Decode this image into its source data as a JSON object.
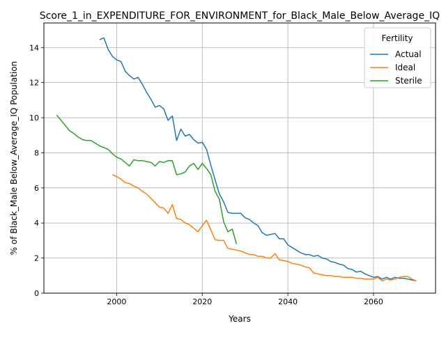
{
  "chart_data": {
    "type": "line",
    "title": "Score_1_in_EXPENDITURE_FOR_ENVIRONMENT_for_Black_Male_Below_Average_IQ",
    "xlabel": "Years",
    "ylabel": "% of Black_Male Below_Average_IQ Population",
    "xlim": [
      2083,
      2124
    ],
    "ylim": [
      0,
      15.4
    ],
    "xticks": [
      2000,
      2020,
      2040,
      2060
    ],
    "yticks": [
      0,
      2,
      4,
      6,
      8,
      10,
      12,
      14
    ],
    "grid": true,
    "legend": {
      "title": "Fertility",
      "placement": "top-right"
    },
    "series": [
      {
        "name": "Actual",
        "color": "#1f77b4",
        "x": [
          1996,
          1997,
          1998,
          1999,
          2000,
          2001,
          2002,
          2003,
          2004,
          2005,
          2006,
          2007,
          2008,
          2009,
          2010,
          2011,
          2012,
          2013,
          2014,
          2015,
          2016,
          2017,
          2018,
          2019,
          2020,
          2021,
          2022,
          2023,
          2024,
          2025,
          2026,
          2027,
          2028,
          2029,
          2030,
          2031,
          2032,
          2033,
          2034,
          2035,
          2036,
          2037,
          2038,
          2039,
          2040,
          2041,
          2042,
          2043,
          2044,
          2045,
          2046,
          2047,
          2048,
          2049,
          2050,
          2051,
          2052,
          2053,
          2054,
          2055,
          2056,
          2057,
          2058,
          2059,
          2060,
          2061,
          2062,
          2063,
          2064,
          2065,
          2066,
          2067,
          2068,
          2069,
          2070
        ],
        "y": [
          14.45,
          14.55,
          13.9,
          13.5,
          13.3,
          13.2,
          12.65,
          12.4,
          12.2,
          12.3,
          11.9,
          11.45,
          11.05,
          10.6,
          10.7,
          10.5,
          9.85,
          10.1,
          8.7,
          9.35,
          8.95,
          9.05,
          8.75,
          8.55,
          8.6,
          8.2,
          7.3,
          6.45,
          5.65,
          5.2,
          4.6,
          4.55,
          4.55,
          4.55,
          4.3,
          4.2,
          4.0,
          3.85,
          3.45,
          3.3,
          3.35,
          3.4,
          3.1,
          3.1,
          2.75,
          2.6,
          2.45,
          2.3,
          2.2,
          2.2,
          2.1,
          2.15,
          2.0,
          1.95,
          1.8,
          1.75,
          1.65,
          1.6,
          1.4,
          1.35,
          1.2,
          1.25,
          1.1,
          1.0,
          0.9,
          0.95,
          0.8,
          0.9,
          0.8,
          0.9,
          0.85,
          0.85,
          0.8,
          0.75,
          0.7
        ]
      },
      {
        "name": "Ideal",
        "color": "#ff7f0e",
        "x": [
          1999,
          2000,
          2001,
          2002,
          2003,
          2004,
          2005,
          2006,
          2007,
          2008,
          2009,
          2010,
          2011,
          2012,
          2013,
          2014,
          2015,
          2016,
          2017,
          2018,
          2019,
          2020,
          2021,
          2022,
          2023,
          2024,
          2025,
          2026,
          2027,
          2028,
          2029,
          2030,
          2031,
          2032,
          2033,
          2034,
          2035,
          2036,
          2037,
          2038,
          2039,
          2040,
          2041,
          2042,
          2043,
          2044,
          2045,
          2046,
          2047,
          2048,
          2049,
          2050,
          2051,
          2052,
          2053,
          2054,
          2055,
          2056,
          2057,
          2058,
          2059,
          2060,
          2061,
          2062,
          2063,
          2064,
          2065,
          2066,
          2067,
          2068,
          2069,
          2070
        ],
        "y": [
          6.75,
          6.65,
          6.5,
          6.3,
          6.25,
          6.1,
          6.0,
          5.8,
          5.65,
          5.4,
          5.15,
          4.9,
          4.85,
          4.55,
          5.05,
          4.25,
          4.2,
          4.0,
          3.9,
          3.7,
          3.5,
          3.85,
          4.15,
          3.6,
          3.05,
          3.0,
          3.0,
          2.55,
          2.5,
          2.45,
          2.4,
          2.3,
          2.2,
          2.2,
          2.1,
          2.1,
          2.0,
          2.0,
          2.25,
          1.9,
          1.85,
          1.8,
          1.7,
          1.65,
          1.6,
          1.5,
          1.45,
          1.15,
          1.1,
          1.05,
          1.0,
          1.0,
          0.95,
          0.95,
          0.9,
          0.9,
          0.9,
          0.85,
          0.85,
          0.8,
          0.8,
          0.8,
          0.9,
          0.7,
          0.8,
          0.75,
          0.8,
          0.9,
          0.95,
          0.95,
          0.8,
          0.7
        ]
      },
      {
        "name": "Sterile",
        "color": "#2ca02c",
        "x": [
          1986,
          1987,
          1988,
          1989,
          1990,
          1991,
          1992,
          1993,
          1994,
          1995,
          1996,
          1997,
          1998,
          1999,
          2000,
          2001,
          2002,
          2003,
          2004,
          2005,
          2006,
          2007,
          2008,
          2009,
          2010,
          2011,
          2012,
          2013,
          2014,
          2015,
          2016,
          2017,
          2018,
          2019,
          2020,
          2021,
          2022,
          2023,
          2024,
          2025,
          2026,
          2027,
          2028
        ],
        "y": [
          10.15,
          9.85,
          9.55,
          9.25,
          9.1,
          8.9,
          8.75,
          8.7,
          8.7,
          8.55,
          8.4,
          8.3,
          8.2,
          7.95,
          7.75,
          7.65,
          7.45,
          7.25,
          7.6,
          7.55,
          7.55,
          7.5,
          7.45,
          7.25,
          7.5,
          7.45,
          7.55,
          7.55,
          6.75,
          6.8,
          6.9,
          7.25,
          7.4,
          7.05,
          7.4,
          7.1,
          6.75,
          5.8,
          5.35,
          4.05,
          3.5,
          3.65,
          2.8
        ]
      }
    ]
  }
}
